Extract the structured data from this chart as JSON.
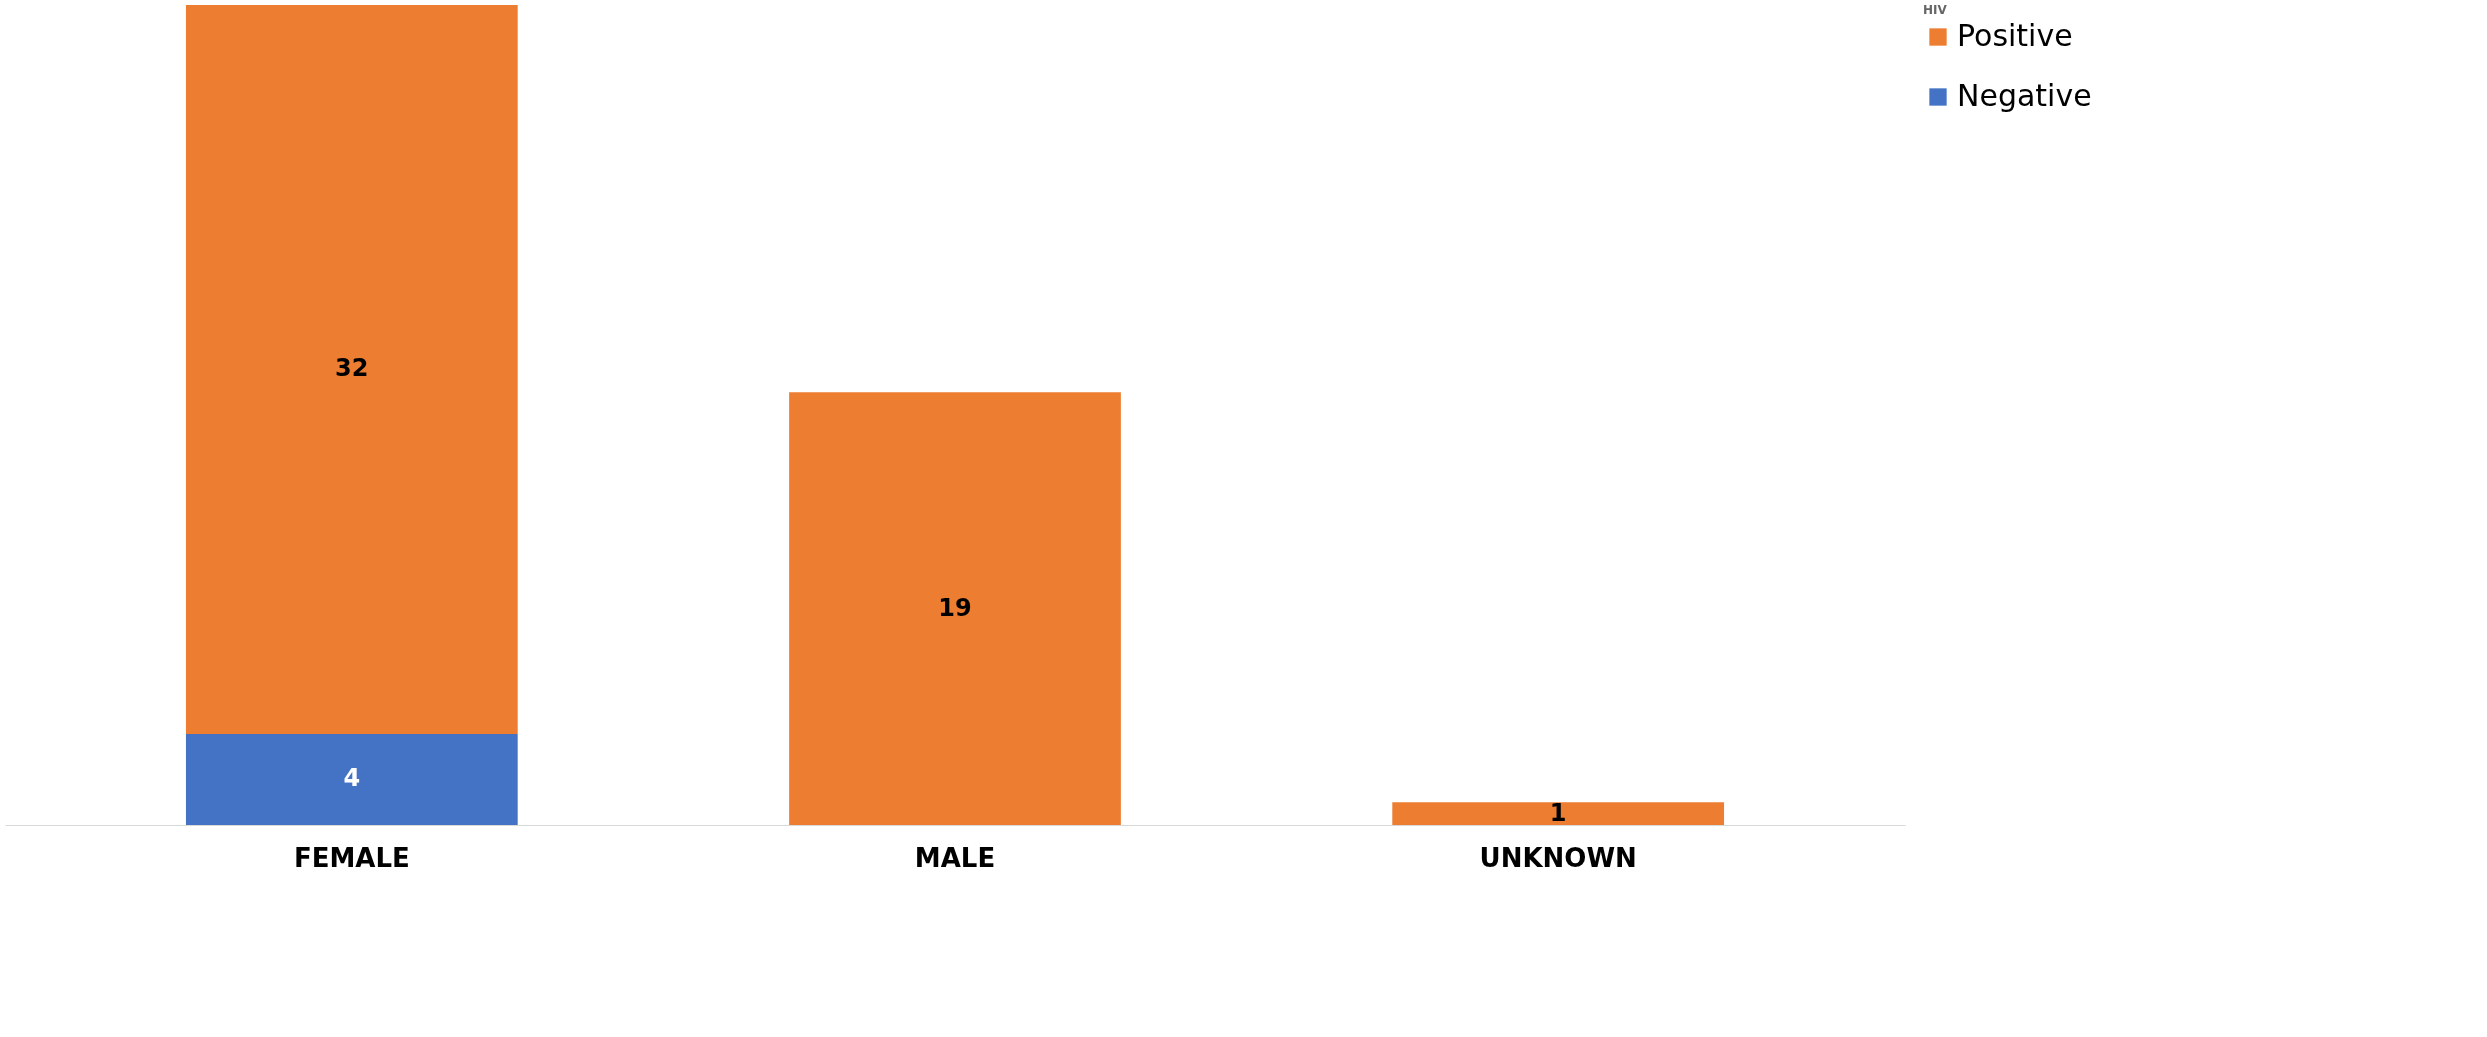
{
  "chart_data": {
    "type": "bar",
    "stacked": true,
    "categories": [
      "FEMALE",
      "MALE",
      "UNKNOWN"
    ],
    "series": [
      {
        "name": "Negative",
        "color": "#4472c4",
        "values": [
          4,
          null,
          null
        ]
      },
      {
        "name": "Positive",
        "color": "#ed7d31",
        "values": [
          32,
          19,
          1
        ]
      }
    ],
    "legend_title": "HIV",
    "legend": "right",
    "data_labels": true,
    "grid": false
  }
}
